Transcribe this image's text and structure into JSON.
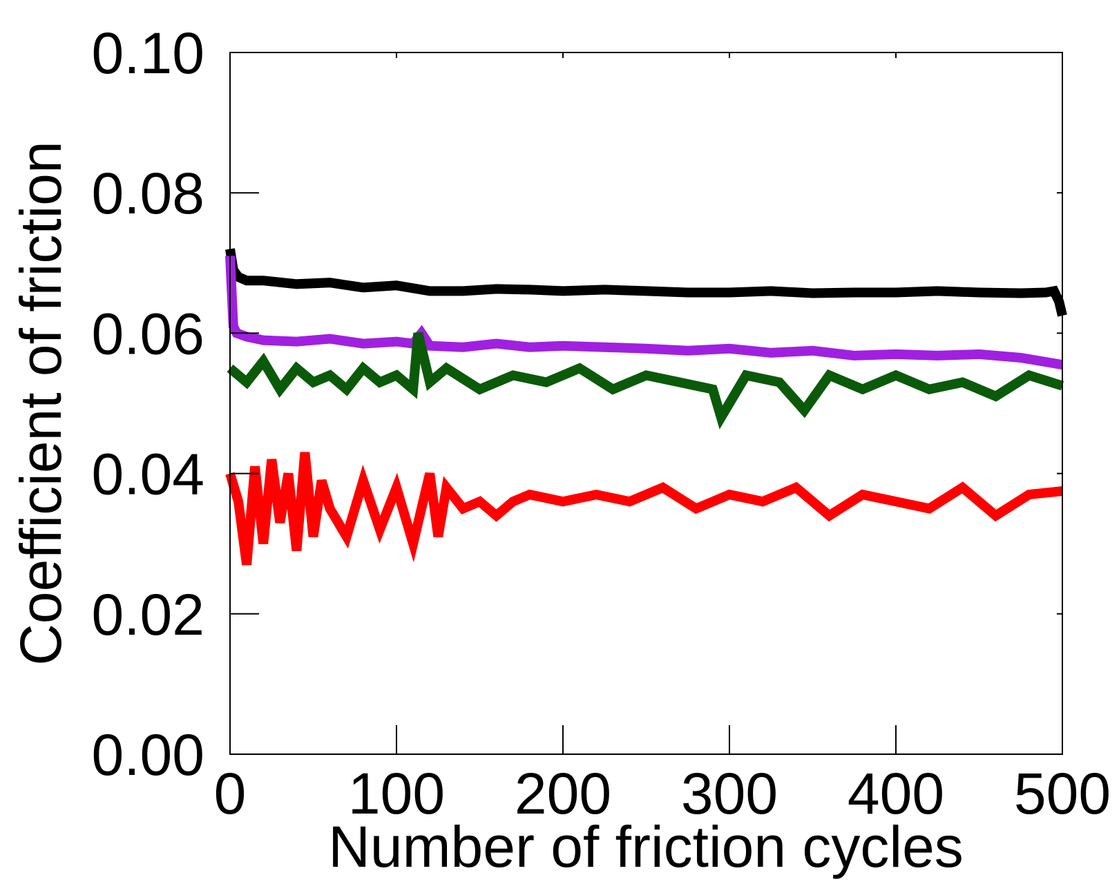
{
  "chart_data": {
    "type": "line",
    "title": "",
    "xlabel": "Number of friction cycles",
    "ylabel": "Coefficient of friction",
    "xlim": [
      0,
      500
    ],
    "ylim": [
      0.0,
      0.1
    ],
    "x_ticks": [
      0,
      100,
      200,
      300,
      400,
      500
    ],
    "x_tick_labels": [
      "0",
      "100",
      "200",
      "300",
      "400",
      "500"
    ],
    "y_ticks": [
      0.0,
      0.02,
      0.04,
      0.06,
      0.08,
      0.1
    ],
    "y_tick_labels": [
      "0.00",
      "0.02",
      "0.04",
      "0.06",
      "0.08",
      "0.10"
    ],
    "grid": false,
    "legend": "none",
    "series": [
      {
        "color": "#000000",
        "x": [
          0,
          2,
          5,
          10,
          20,
          40,
          60,
          80,
          100,
          120,
          140,
          160,
          180,
          200,
          225,
          250,
          275,
          300,
          325,
          350,
          375,
          400,
          425,
          450,
          475,
          490,
          495,
          498,
          500
        ],
        "y": [
          0.072,
          0.069,
          0.068,
          0.0675,
          0.0675,
          0.067,
          0.0672,
          0.0665,
          0.0668,
          0.066,
          0.066,
          0.0663,
          0.0662,
          0.066,
          0.0662,
          0.066,
          0.0658,
          0.0658,
          0.066,
          0.0657,
          0.0658,
          0.0658,
          0.066,
          0.0658,
          0.0657,
          0.0658,
          0.066,
          0.0645,
          0.0625
        ]
      },
      {
        "color": "#a020e0",
        "x": [
          0,
          2,
          4,
          10,
          20,
          40,
          60,
          80,
          100,
          110,
          115,
          120,
          140,
          160,
          180,
          200,
          225,
          250,
          275,
          300,
          325,
          350,
          375,
          400,
          425,
          450,
          475,
          500
        ],
        "y": [
          0.071,
          0.061,
          0.06,
          0.0595,
          0.059,
          0.0588,
          0.0592,
          0.0585,
          0.0588,
          0.0585,
          0.06,
          0.0582,
          0.058,
          0.0585,
          0.058,
          0.0582,
          0.058,
          0.0578,
          0.0575,
          0.0578,
          0.0572,
          0.0575,
          0.0568,
          0.057,
          0.0568,
          0.057,
          0.0565,
          0.0555
        ]
      },
      {
        "color": "#0a5a0a",
        "x": [
          0,
          10,
          20,
          30,
          40,
          50,
          60,
          70,
          80,
          90,
          100,
          110,
          113,
          120,
          130,
          150,
          170,
          190,
          210,
          230,
          250,
          270,
          290,
          295,
          310,
          330,
          345,
          360,
          380,
          400,
          420,
          440,
          460,
          480,
          500
        ],
        "y": [
          0.055,
          0.053,
          0.056,
          0.052,
          0.055,
          0.053,
          0.054,
          0.052,
          0.055,
          0.053,
          0.054,
          0.052,
          0.06,
          0.053,
          0.055,
          0.052,
          0.054,
          0.053,
          0.055,
          0.052,
          0.054,
          0.053,
          0.052,
          0.048,
          0.054,
          0.053,
          0.049,
          0.054,
          0.052,
          0.054,
          0.052,
          0.053,
          0.051,
          0.054,
          0.0525
        ]
      },
      {
        "color": "#ff0000",
        "x": [
          0,
          5,
          10,
          15,
          20,
          25,
          30,
          35,
          40,
          45,
          50,
          55,
          60,
          70,
          80,
          90,
          100,
          110,
          120,
          125,
          130,
          140,
          150,
          160,
          170,
          180,
          200,
          220,
          240,
          260,
          280,
          300,
          320,
          340,
          360,
          380,
          400,
          420,
          440,
          460,
          480,
          500
        ],
        "y": [
          0.04,
          0.036,
          0.027,
          0.041,
          0.03,
          0.042,
          0.033,
          0.04,
          0.029,
          0.043,
          0.031,
          0.039,
          0.035,
          0.031,
          0.039,
          0.032,
          0.038,
          0.03,
          0.04,
          0.031,
          0.038,
          0.035,
          0.036,
          0.034,
          0.036,
          0.037,
          0.036,
          0.037,
          0.036,
          0.038,
          0.035,
          0.037,
          0.036,
          0.038,
          0.034,
          0.037,
          0.036,
          0.035,
          0.038,
          0.034,
          0.037,
          0.0375
        ]
      }
    ]
  }
}
